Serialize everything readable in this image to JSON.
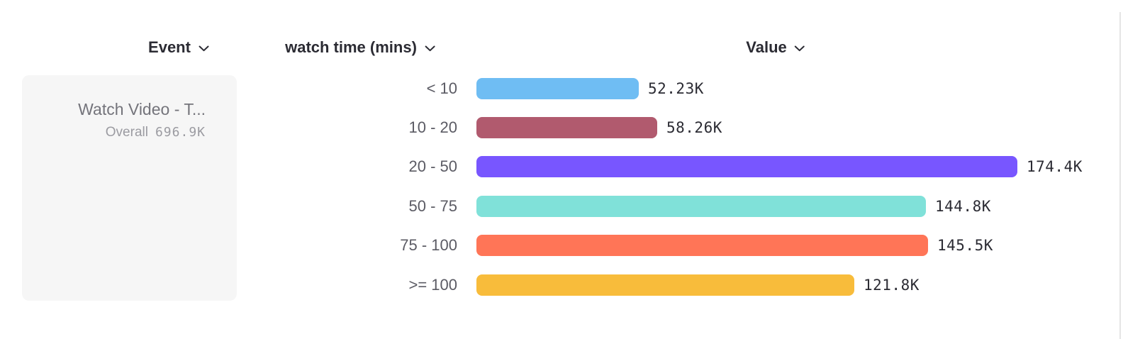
{
  "header": {
    "columns": [
      {
        "label": "Event",
        "icon": "chevron-down"
      },
      {
        "label": "watch time (mins)",
        "icon": "chevron-down"
      },
      {
        "label": "Value",
        "icon": "chevron-down"
      }
    ]
  },
  "event_card": {
    "name": "Watch Video - T...",
    "overall_label": "Overall",
    "overall_value": "696.9K"
  },
  "chart_data": {
    "type": "bar",
    "orientation": "horizontal",
    "group_label": "watch time (mins)",
    "value_axis_label": "Value",
    "categories": [
      "< 10",
      "10 - 20",
      "20 - 50",
      "50 - 75",
      "75 - 100",
      ">= 100"
    ],
    "values": [
      52230,
      58260,
      174400,
      144800,
      145500,
      121800
    ],
    "value_labels": [
      "52.23K",
      "58.26K",
      "174.4K",
      "144.8K",
      "145.5K",
      "121.8K"
    ],
    "bar_colors": [
      "#6FBDF3",
      "#B15A6E",
      "#7856FF",
      "#80E1D9",
      "#FF7557",
      "#F8BC3B"
    ],
    "overall_total": 696900,
    "xlim": [
      0,
      174400
    ],
    "grid": false,
    "legend": false
  }
}
